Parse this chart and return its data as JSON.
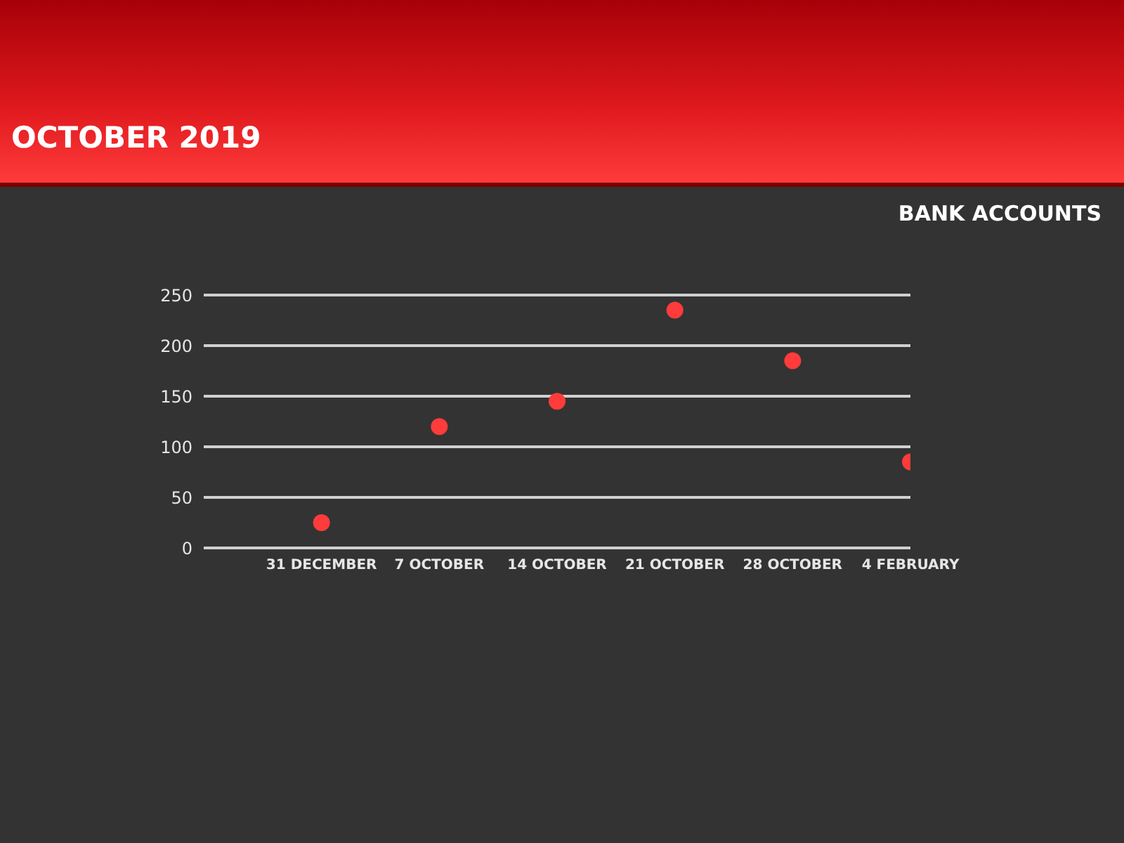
{
  "chart_data": {
    "type": "scatter",
    "title": "OCTOBER 2019",
    "subtitle": "BANK ACCOUNTS",
    "categories": [
      "31 DECEMBER",
      "7 OCTOBER",
      "14 OCTOBER",
      "21 OCTOBER",
      "28 OCTOBER",
      "4 FEBRUARY"
    ],
    "series": [
      {
        "color": "#ff3b3b",
        "values": [
          25,
          120,
          145,
          235,
          185,
          85
        ]
      }
    ],
    "ylim": [
      0,
      250
    ],
    "yticks": [
      0,
      50,
      100,
      150,
      200,
      250
    ],
    "grid": "y",
    "marker": "circle",
    "legend": false
  }
}
